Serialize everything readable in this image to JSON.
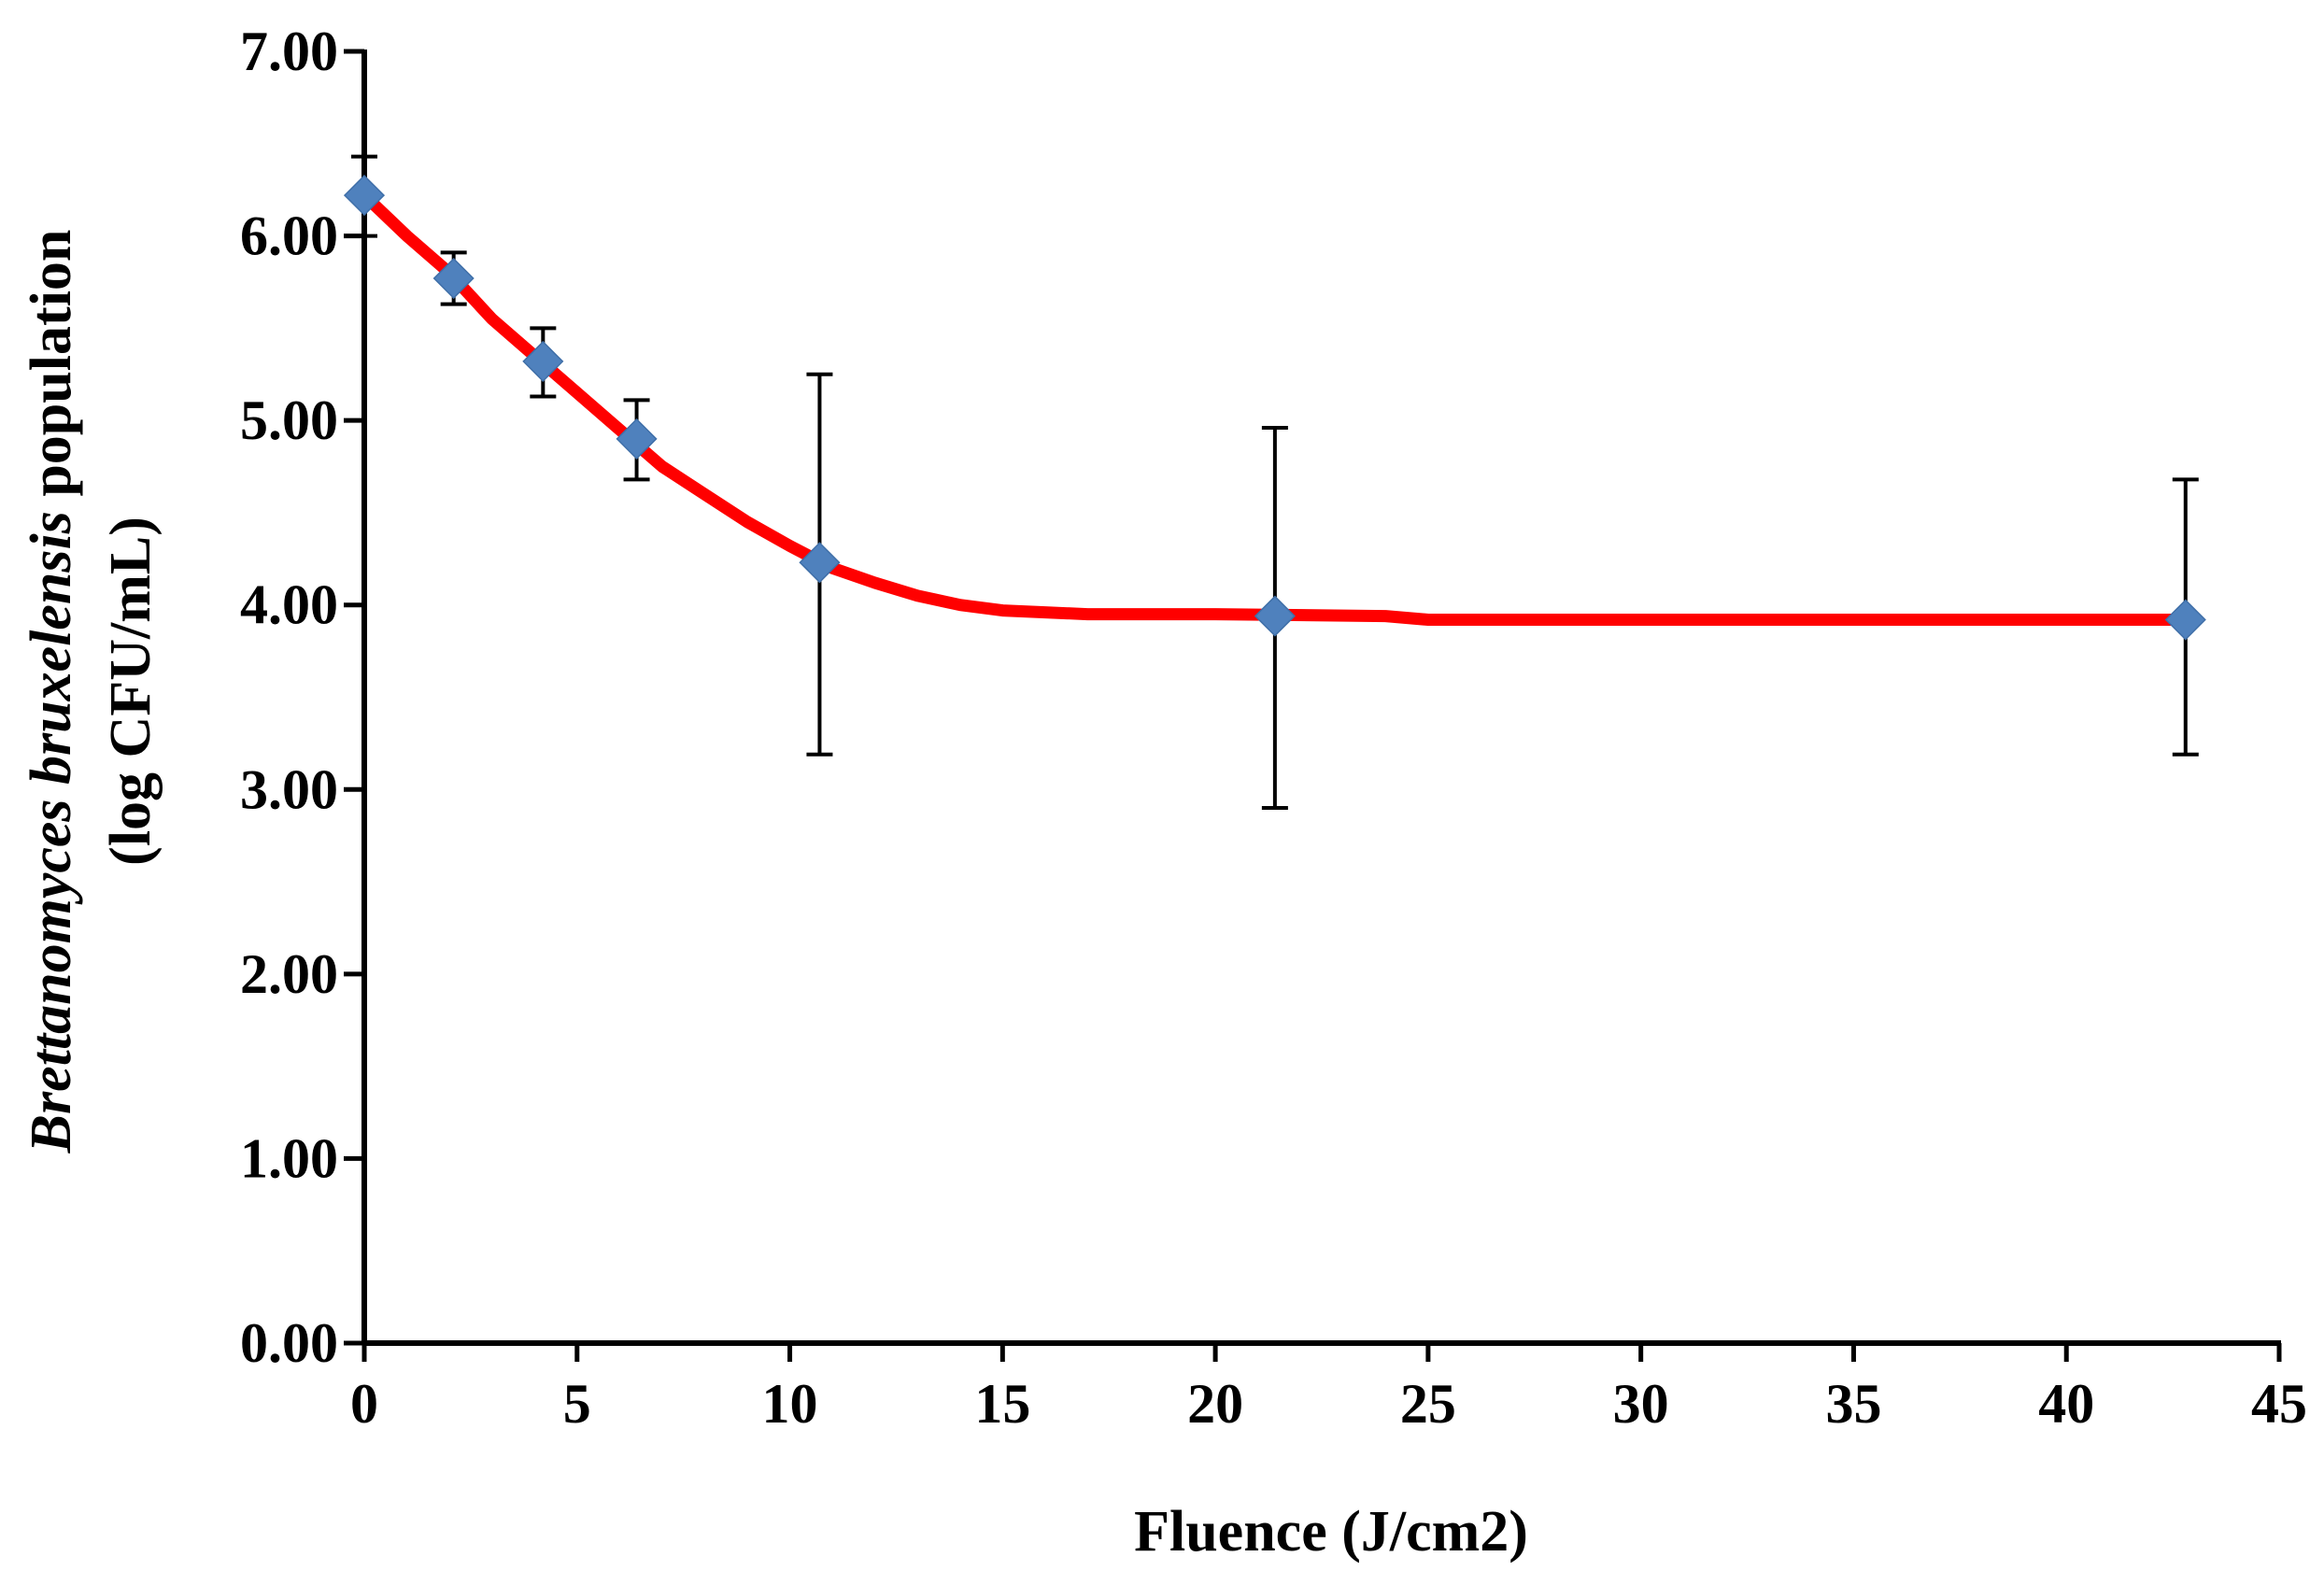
{
  "chart_data": {
    "type": "scatter",
    "title": "",
    "xlabel": "Fluence (J/cm2)",
    "ylabel": {
      "line1_italic": "Brettanomyces bruxelensis",
      "line1_rest": " population",
      "line2": "(log CFU/mL)"
    },
    "xlim": [
      0,
      45
    ],
    "ylim": [
      0,
      7
    ],
    "x_ticks": [
      0,
      5,
      10,
      15,
      20,
      25,
      30,
      35,
      40,
      45
    ],
    "x_tick_labels": [
      "0",
      "5",
      "10",
      "15",
      "20",
      "25",
      "30",
      "35",
      "40",
      "45"
    ],
    "y_ticks": [
      0,
      1,
      2,
      3,
      4,
      5,
      6,
      7
    ],
    "y_tick_labels": [
      "0.00",
      "1.00",
      "2.00",
      "3.00",
      "4.00",
      "5.00",
      "6.00",
      "7.00"
    ],
    "grid": false,
    "legend": "none",
    "series": [
      {
        "points": [
          {
            "x": 0.0,
            "y": 6.22,
            "err_low": 6.0,
            "err_high": 6.43
          },
          {
            "x": 2.1,
            "y": 5.77,
            "err_low": 5.63,
            "err_high": 5.91
          },
          {
            "x": 4.2,
            "y": 5.32,
            "err_low": 5.13,
            "err_high": 5.5
          },
          {
            "x": 6.4,
            "y": 4.9,
            "err_low": 4.68,
            "err_high": 5.11
          },
          {
            "x": 10.7,
            "y": 4.23,
            "err_low": 3.19,
            "err_high": 5.25
          },
          {
            "x": 21.4,
            "y": 3.94,
            "err_low": 2.9,
            "err_high": 4.96
          },
          {
            "x": 42.8,
            "y": 3.92,
            "err_low": 3.19,
            "err_high": 4.68
          }
        ]
      }
    ],
    "fit_curve": [
      [
        0,
        6.22
      ],
      [
        1,
        6.0
      ],
      [
        2,
        5.8
      ],
      [
        3,
        5.55
      ],
      [
        4,
        5.35
      ],
      [
        5,
        5.15
      ],
      [
        6,
        4.95
      ],
      [
        7,
        4.75
      ],
      [
        8,
        4.6
      ],
      [
        9,
        4.45
      ],
      [
        10,
        4.32
      ],
      [
        11,
        4.2
      ],
      [
        12,
        4.12
      ],
      [
        13,
        4.05
      ],
      [
        14,
        4.0
      ],
      [
        15,
        3.97
      ],
      [
        16,
        3.96
      ],
      [
        17,
        3.95
      ],
      [
        20,
        3.95
      ],
      [
        24,
        3.94
      ],
      [
        25,
        3.92
      ],
      [
        43,
        3.92
      ]
    ],
    "colors": {
      "marker": "#4F81BD",
      "fit_line": "#FF0000",
      "axis": "#000000",
      "error_bar": "#000000"
    }
  }
}
